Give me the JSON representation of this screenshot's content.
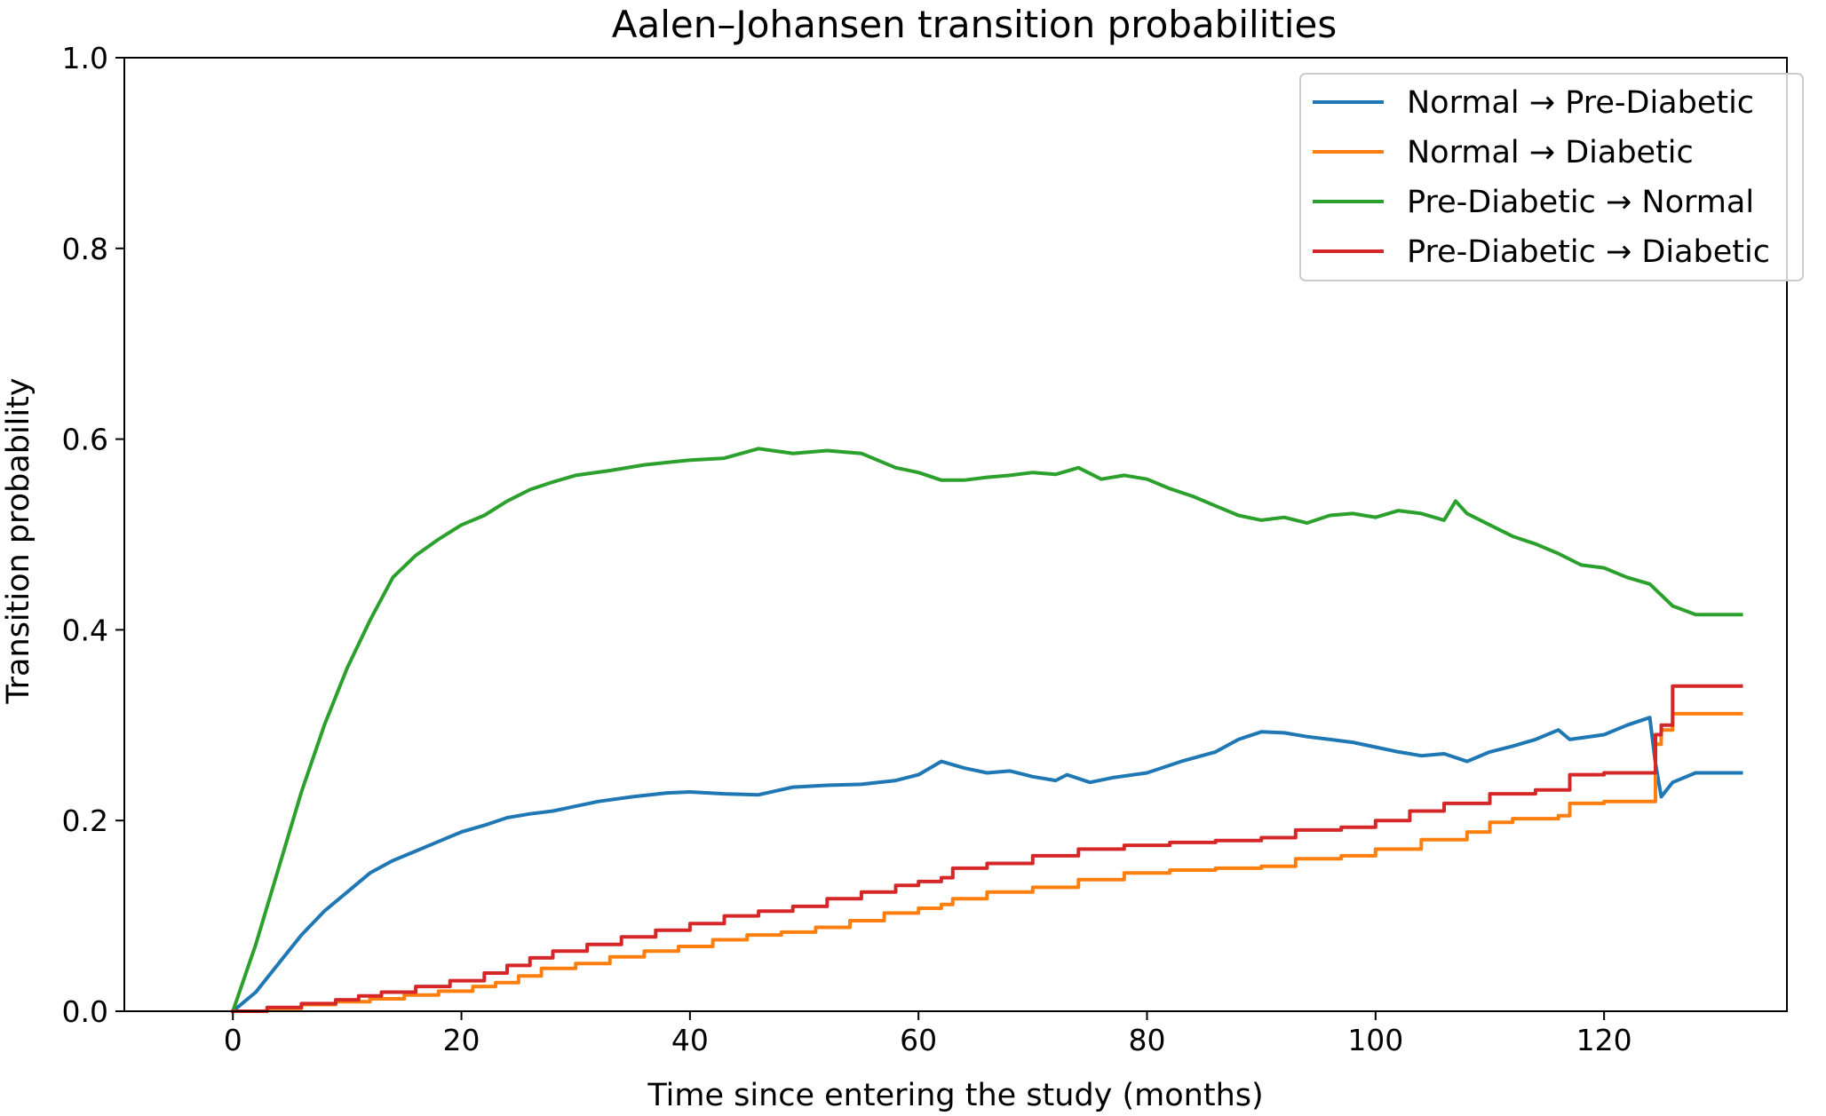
{
  "chart_data": {
    "type": "line",
    "title": "Aalen–Johansen transition probabilities",
    "xlabel": "Time since entering the study (months)",
    "ylabel": "Transition probability",
    "xlim": [
      -9.5,
      136
    ],
    "ylim": [
      0.0,
      1.0
    ],
    "xticks": [
      0,
      20,
      40,
      60,
      80,
      100,
      120
    ],
    "yticks": [
      0.0,
      0.2,
      0.4,
      0.6,
      0.8,
      1.0
    ],
    "xtick_labels": [
      "0",
      "20",
      "40",
      "60",
      "80",
      "100",
      "120"
    ],
    "ytick_labels": [
      "0.0",
      "0.2",
      "0.4",
      "0.6",
      "0.8",
      "1.0"
    ],
    "grid": false,
    "legend_position": "top-right",
    "series": [
      {
        "name": "Normal → Pre-Diabetic",
        "color": "#1f77b4",
        "step": false,
        "x": [
          0,
          2,
          4,
          6,
          8,
          10,
          12,
          14,
          16,
          18,
          20,
          22,
          24,
          26,
          28,
          30,
          32,
          35,
          38,
          40,
          43,
          46,
          49,
          52,
          55,
          58,
          60,
          62,
          64,
          66,
          68,
          70,
          72,
          73,
          75,
          77,
          80,
          83,
          86,
          88,
          90,
          92,
          94,
          96,
          98,
          100,
          102,
          104,
          106,
          108,
          110,
          112,
          114,
          116,
          117,
          120,
          122,
          124,
          124.5,
          125,
          126,
          128,
          132
        ],
        "y": [
          0.0,
          0.02,
          0.05,
          0.08,
          0.105,
          0.125,
          0.145,
          0.158,
          0.168,
          0.178,
          0.188,
          0.195,
          0.203,
          0.207,
          0.21,
          0.215,
          0.22,
          0.225,
          0.229,
          0.23,
          0.228,
          0.227,
          0.235,
          0.237,
          0.238,
          0.242,
          0.248,
          0.262,
          0.255,
          0.25,
          0.252,
          0.246,
          0.242,
          0.248,
          0.24,
          0.245,
          0.25,
          0.262,
          0.272,
          0.285,
          0.293,
          0.292,
          0.288,
          0.285,
          0.282,
          0.277,
          0.272,
          0.268,
          0.27,
          0.262,
          0.272,
          0.278,
          0.285,
          0.295,
          0.285,
          0.29,
          0.3,
          0.308,
          0.26,
          0.225,
          0.24,
          0.25,
          0.25
        ]
      },
      {
        "name": "Normal → Diabetic",
        "color": "#ff7f0e",
        "step": true,
        "x": [
          0,
          3,
          6,
          9,
          12,
          15,
          18,
          21,
          23,
          25,
          27,
          30,
          33,
          36,
          39,
          42,
          45,
          48,
          51,
          54,
          57,
          60,
          62,
          63,
          66,
          70,
          74,
          78,
          82,
          86,
          90,
          93,
          97,
          100,
          104,
          108,
          110,
          112,
          116,
          117,
          120,
          124.5,
          125,
          126,
          132
        ],
        "y": [
          0.0,
          0.003,
          0.007,
          0.01,
          0.013,
          0.017,
          0.021,
          0.026,
          0.03,
          0.037,
          0.045,
          0.05,
          0.057,
          0.063,
          0.068,
          0.075,
          0.08,
          0.083,
          0.088,
          0.095,
          0.103,
          0.108,
          0.112,
          0.118,
          0.125,
          0.13,
          0.138,
          0.145,
          0.148,
          0.15,
          0.152,
          0.16,
          0.163,
          0.17,
          0.18,
          0.188,
          0.198,
          0.202,
          0.205,
          0.218,
          0.22,
          0.28,
          0.295,
          0.312,
          0.312
        ]
      },
      {
        "name": "Pre-Diabetic → Normal",
        "color": "#2ca02c",
        "step": false,
        "x": [
          0,
          2,
          4,
          6,
          8,
          10,
          12,
          14,
          16,
          18,
          20,
          22,
          24,
          26,
          28,
          30,
          33,
          36,
          40,
          43,
          46,
          49,
          52,
          55,
          58,
          60,
          62,
          64,
          66,
          68,
          70,
          72,
          74,
          76,
          78,
          80,
          82,
          84,
          86,
          88,
          90,
          92,
          94,
          96,
          98,
          100,
          102,
          104,
          106,
          107,
          108,
          110,
          112,
          114,
          116,
          118,
          120,
          122,
          124,
          126,
          128,
          132
        ],
        "y": [
          0.0,
          0.07,
          0.15,
          0.23,
          0.3,
          0.36,
          0.41,
          0.455,
          0.478,
          0.495,
          0.51,
          0.52,
          0.535,
          0.547,
          0.555,
          0.562,
          0.567,
          0.573,
          0.578,
          0.58,
          0.59,
          0.585,
          0.588,
          0.585,
          0.57,
          0.565,
          0.557,
          0.557,
          0.56,
          0.562,
          0.565,
          0.563,
          0.57,
          0.558,
          0.562,
          0.558,
          0.548,
          0.54,
          0.53,
          0.52,
          0.515,
          0.518,
          0.512,
          0.52,
          0.522,
          0.518,
          0.525,
          0.522,
          0.515,
          0.535,
          0.522,
          0.51,
          0.498,
          0.49,
          0.48,
          0.468,
          0.465,
          0.455,
          0.448,
          0.425,
          0.416,
          0.416
        ]
      },
      {
        "name": "Pre-Diabetic → Diabetic",
        "color": "#d62728",
        "step": true,
        "x": [
          0,
          3,
          6,
          9,
          11,
          13,
          16,
          19,
          22,
          24,
          26,
          28,
          31,
          34,
          37,
          40,
          43,
          46,
          49,
          52,
          55,
          58,
          60,
          62,
          63,
          66,
          70,
          74,
          78,
          82,
          86,
          90,
          93,
          97,
          100,
          103,
          106,
          110,
          114,
          117,
          120,
          124.5,
          125,
          126,
          132
        ],
        "y": [
          0.0,
          0.004,
          0.008,
          0.012,
          0.016,
          0.02,
          0.026,
          0.032,
          0.04,
          0.048,
          0.056,
          0.063,
          0.07,
          0.078,
          0.085,
          0.092,
          0.1,
          0.105,
          0.11,
          0.118,
          0.125,
          0.132,
          0.136,
          0.14,
          0.15,
          0.155,
          0.163,
          0.17,
          0.174,
          0.177,
          0.179,
          0.182,
          0.19,
          0.193,
          0.2,
          0.21,
          0.218,
          0.228,
          0.232,
          0.248,
          0.25,
          0.29,
          0.3,
          0.341,
          0.341
        ]
      }
    ]
  }
}
